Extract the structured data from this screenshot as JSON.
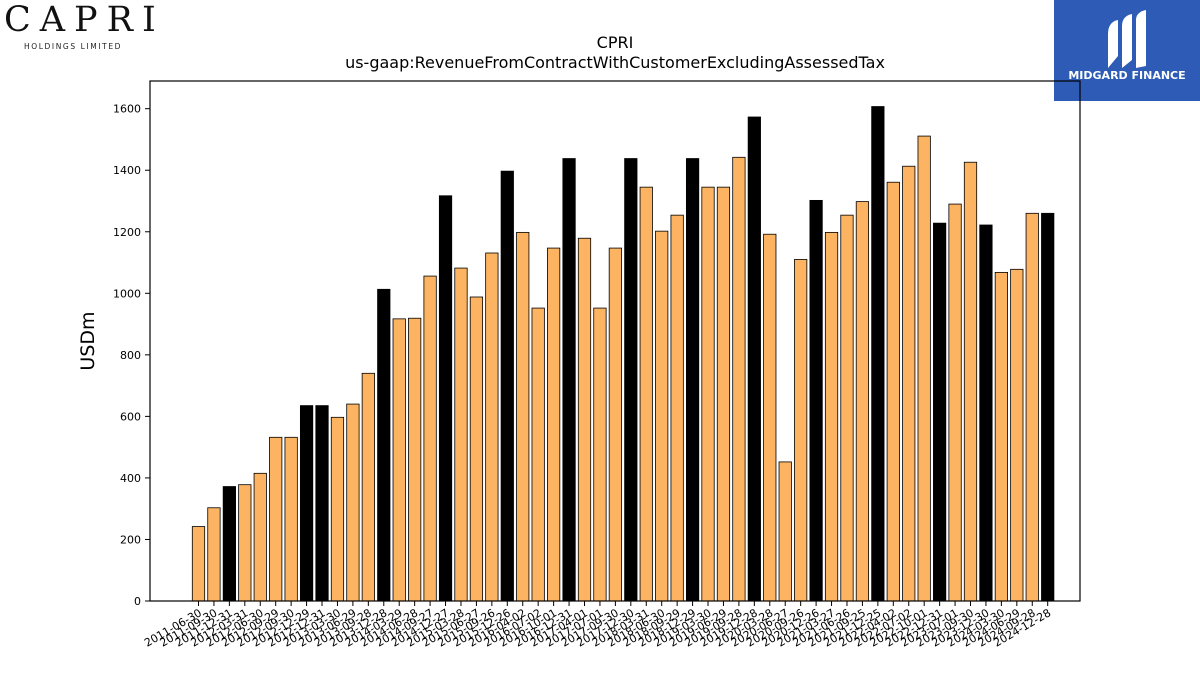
{
  "brand_left": {
    "name": "CAPRI",
    "tagline": "HOLDINGS LIMITED"
  },
  "brand_right": {
    "name": "MIDGARD FINANCE",
    "color": "#2d5bb5"
  },
  "chart_data": {
    "type": "bar",
    "title": "CPRI",
    "subtitle": "us-gaap:RevenueFromContractWithCustomerExcludingAssessedTax",
    "ylabel": "USDm",
    "xlabel": "",
    "ylim": [
      0,
      1690
    ],
    "yticks": [
      0,
      200,
      400,
      600,
      800,
      1000,
      1200,
      1400,
      1600
    ],
    "grid": false,
    "colors": {
      "quarter": "#fdb462",
      "annual": "#000000"
    },
    "categories": [
      "2011-06-30",
      "2011-09-30",
      "2011-12-31",
      "2012-03-31",
      "2012-06-30",
      "2012-09-29",
      "2012-09-30",
      "2012-12-29",
      "2012-12-31",
      "2013-03-30",
      "2013-06-29",
      "2013-09-28",
      "2013-12-28",
      "2014-03-29",
      "2014-06-28",
      "2014-09-27",
      "2014-12-27",
      "2015-03-28",
      "2015-06-27",
      "2015-09-26",
      "2015-12-26",
      "2016-04-02",
      "2016-07-02",
      "2016-10-01",
      "2016-12-31",
      "2017-04-01",
      "2017-07-01",
      "2017-09-30",
      "2017-12-30",
      "2018-03-31",
      "2018-06-30",
      "2018-09-29",
      "2018-12-29",
      "2019-03-30",
      "2019-06-29",
      "2019-09-28",
      "2019-12-28",
      "2020-03-28",
      "2020-06-27",
      "2020-09-26",
      "2020-12-26",
      "2021-03-27",
      "2021-06-26",
      "2021-09-25",
      "2021-12-25",
      "2022-04-02",
      "2022-07-02",
      "2022-10-01",
      "2022-12-31",
      "2023-07-01",
      "2023-09-30",
      "2023-12-30",
      "2024-03-30",
      "2024-06-29",
      "2024-09-28",
      "2024-12-28"
    ],
    "series": [
      {
        "values": [
          242,
          303,
          372,
          378,
          415,
          532,
          532,
          635,
          635,
          597,
          640,
          740,
          1013,
          917,
          919,
          1056,
          1317,
          1082,
          988,
          1131,
          1397,
          1198,
          952,
          1147,
          1438,
          1179,
          952,
          1147,
          1438,
          1345,
          1202,
          1254,
          1438,
          1345,
          1345,
          1442,
          1573,
          1192,
          452,
          1110,
          1302,
          1198,
          1254,
          1298,
          1607,
          1361,
          1413,
          1511,
          1228,
          1290,
          1426,
          1222,
          1068,
          1078,
          1260,
          1260
        ],
        "types": [
          "q",
          "q",
          "a",
          "q",
          "q",
          "q",
          "q",
          "a",
          "a",
          "q",
          "q",
          "q",
          "a",
          "q",
          "q",
          "q",
          "a",
          "q",
          "q",
          "q",
          "a",
          "q",
          "q",
          "q",
          "a",
          "q",
          "q",
          "q",
          "a",
          "q",
          "q",
          "q",
          "a",
          "q",
          "q",
          "q",
          "a",
          "q",
          "q",
          "q",
          "a",
          "q",
          "q",
          "q",
          "a",
          "q",
          "q",
          "q",
          "a",
          "q",
          "q",
          "a",
          "q",
          "q",
          "q",
          "a"
        ]
      }
    ]
  }
}
